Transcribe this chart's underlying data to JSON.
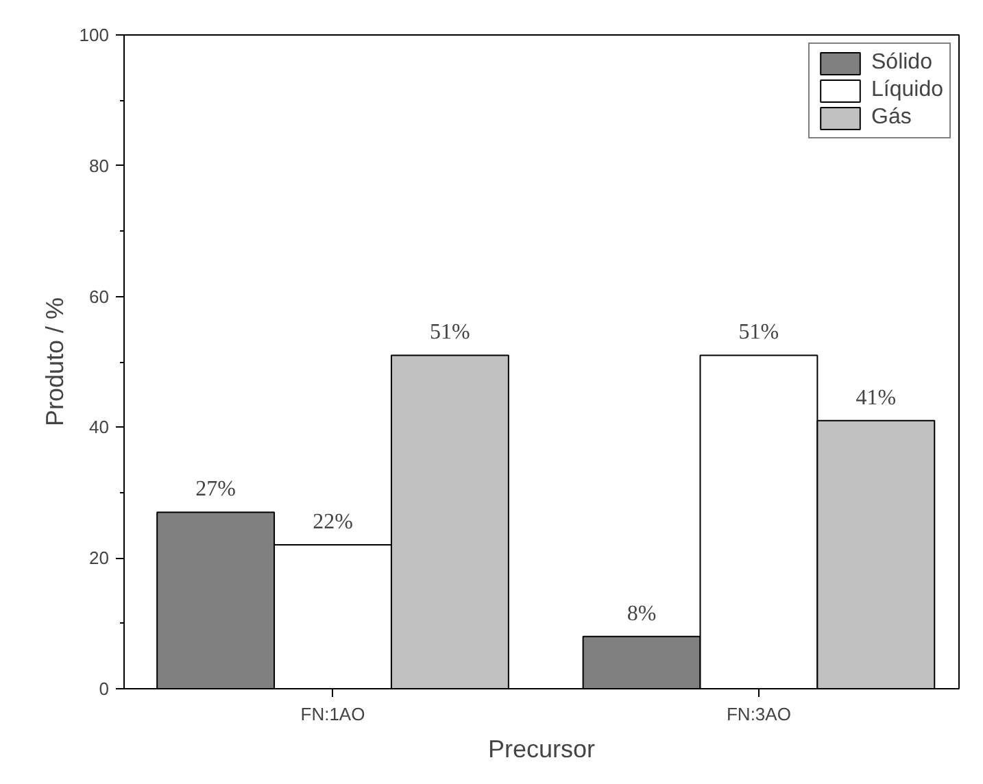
{
  "chart_data": {
    "type": "bar",
    "xlabel": "Precursor",
    "ylabel": "Produto / %",
    "categories": [
      "FN:1AO",
      "FN:3AO"
    ],
    "series": [
      {
        "name": "Sólido",
        "color": "#808080",
        "values": [
          27,
          8
        ],
        "value_labels": [
          "27%",
          "8%"
        ]
      },
      {
        "name": "Líquido",
        "color": "#ffffff",
        "values": [
          22,
          51
        ],
        "value_labels": [
          "22%",
          "51%"
        ]
      },
      {
        "name": "Gás",
        "color": "#c0c0c0",
        "values": [
          51,
          41
        ],
        "value_labels": [
          "51%",
          "41%"
        ]
      }
    ],
    "ylim": [
      0,
      100
    ],
    "yticks": [
      0,
      20,
      40,
      60,
      80,
      100
    ],
    "grid": false,
    "legend": "top right"
  }
}
